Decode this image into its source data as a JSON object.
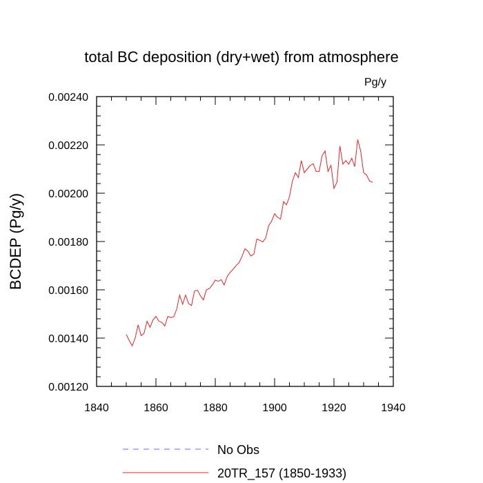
{
  "chart_data": {
    "type": "line",
    "title": "total BC deposition (dry+wet) from atmosphere",
    "units_label": "Pg/y",
    "xlabel": "",
    "ylabel": "BCDEP  (Pg/y)",
    "xlim": [
      1840,
      1940
    ],
    "ylim": [
      0.0012,
      0.0024
    ],
    "x_ticks": [
      1840,
      1860,
      1880,
      1900,
      1920,
      1940
    ],
    "x_tick_labels": [
      "1840",
      "1860",
      "1880",
      "1900",
      "1920",
      "1940"
    ],
    "y_ticks": [
      0.0012,
      0.0014,
      0.0016,
      0.0018,
      0.002,
      0.0022,
      0.0024
    ],
    "y_tick_labels": [
      "0.00120",
      "0.00140",
      "0.00160",
      "0.00180",
      "0.00200",
      "0.00220",
      "0.00240"
    ],
    "grid": false,
    "legend_position": "bottom",
    "series": [
      {
        "name": "No Obs",
        "color": "#6a6ae8",
        "style": "dashed",
        "x": [],
        "values": []
      },
      {
        "name": "20TR_157 (1850-1933)",
        "color": "#e8202a",
        "style": "solid",
        "x": [
          1850,
          1851,
          1852,
          1853,
          1854,
          1855,
          1856,
          1857,
          1858,
          1859,
          1860,
          1861,
          1862,
          1863,
          1864,
          1865,
          1866,
          1867,
          1868,
          1869,
          1870,
          1871,
          1872,
          1873,
          1874,
          1875,
          1876,
          1877,
          1878,
          1879,
          1880,
          1881,
          1882,
          1883,
          1884,
          1885,
          1886,
          1887,
          1888,
          1889,
          1890,
          1891,
          1892,
          1893,
          1894,
          1895,
          1896,
          1897,
          1898,
          1899,
          1900,
          1901,
          1902,
          1903,
          1904,
          1905,
          1906,
          1907,
          1908,
          1909,
          1910,
          1911,
          1912,
          1913,
          1914,
          1915,
          1916,
          1917,
          1918,
          1919,
          1920,
          1921,
          1922,
          1923,
          1924,
          1925,
          1926,
          1927,
          1928,
          1929,
          1930,
          1931,
          1932,
          1933
        ],
        "values": [
          0.001415,
          0.00139,
          0.001368,
          0.0014,
          0.001455,
          0.00141,
          0.00142,
          0.00147,
          0.001445,
          0.001475,
          0.00149,
          0.00147,
          0.001465,
          0.00145,
          0.00149,
          0.001485,
          0.001488,
          0.00152,
          0.001578,
          0.00154,
          0.001578,
          0.001543,
          0.001535,
          0.001595,
          0.001598,
          0.001575,
          0.001558,
          0.0016,
          0.001605,
          0.00162,
          0.00164,
          0.001635,
          0.001642,
          0.00162,
          0.001655,
          0.001672,
          0.001685,
          0.0017,
          0.001712,
          0.001738,
          0.00177,
          0.00176,
          0.00174,
          0.001748,
          0.00181,
          0.001805,
          0.001798,
          0.001815,
          0.001865,
          0.001885,
          0.001915,
          0.0019,
          0.001893,
          0.001965,
          0.001952,
          0.001985,
          0.00205,
          0.002085,
          0.002065,
          0.002135,
          0.002085,
          0.0021,
          0.002115,
          0.002122,
          0.00209,
          0.00209,
          0.002155,
          0.002175,
          0.00209,
          0.002115,
          0.00202,
          0.002045,
          0.002195,
          0.00212,
          0.002135,
          0.00212,
          0.002145,
          0.00211,
          0.002222,
          0.002175,
          0.002085,
          0.002075,
          0.00205,
          0.002045
        ]
      }
    ]
  }
}
